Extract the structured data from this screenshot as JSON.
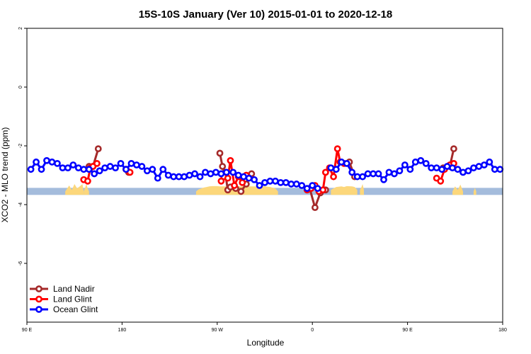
{
  "chart_data": {
    "type": "line",
    "title": "15S-10S January (Ver 10)   2015-01-01 to 2020-12-18",
    "xlabel": "Longitude",
    "ylabel": "XCO2 - MLO trend (ppm)",
    "xlim": [
      -90,
      270
    ],
    "ylim": [
      -8,
      2
    ],
    "x_ticks": [
      {
        "value": -90,
        "label": "90 E"
      },
      {
        "value": -18,
        "label": "180"
      },
      {
        "value": 54,
        "label": "90 W"
      },
      {
        "value": 126,
        "label": "0"
      },
      {
        "value": 198,
        "label": "90 E"
      },
      {
        "value": 270,
        "label": "180"
      }
    ],
    "y_ticks": [
      {
        "value": 2,
        "label": "2"
      },
      {
        "value": 0,
        "label": "0"
      },
      {
        "value": -2,
        "label": "-2"
      },
      {
        "value": -4,
        "label": "-4"
      },
      {
        "value": -6,
        "label": "-6"
      }
    ],
    "legend_position": "bottom-left",
    "band": {
      "y_min": -3.67,
      "y_max": -3.43,
      "color": "#a4bcdc"
    },
    "land_fill_color": "#fcd77b",
    "land_fill_segments": [
      {
        "x": [
          -61,
          -58,
          -56,
          -54,
          -52,
          -50,
          -48,
          -47
        ],
        "y": [
          -3.55,
          -3.35,
          -3.5,
          -3.3,
          -3.45,
          -3.38,
          -3.3,
          -3.55
        ]
      },
      {
        "x": [
          -47,
          -45,
          -44,
          -43
        ],
        "y": [
          -3.55,
          -3.3,
          -3.45,
          -3.55
        ]
      },
      {
        "x": [
          38,
          40,
          42,
          44,
          46,
          48,
          50,
          52,
          54,
          56,
          58,
          60,
          62,
          64,
          66,
          68,
          72,
          75,
          78,
          82,
          86,
          90,
          94,
          98,
          100
        ],
        "y": [
          -3.55,
          -3.48,
          -3.45,
          -3.42,
          -3.4,
          -3.38,
          -3.37,
          -3.37,
          -3.37,
          -3.38,
          -3.38,
          -3.38,
          -3.38,
          -3.38,
          -3.38,
          -3.38,
          -3.38,
          -3.38,
          -3.38,
          -3.38,
          -3.38,
          -3.38,
          -3.4,
          -3.45,
          -3.55
        ]
      },
      {
        "x": [
          140,
          142,
          144,
          148,
          150,
          152,
          156,
          158,
          160
        ],
        "y": [
          -3.5,
          -3.45,
          -3.4,
          -3.38,
          -3.4,
          -3.37,
          -3.38,
          -3.4,
          -3.5
        ]
      },
      {
        "x": [
          162,
          163,
          164,
          165
        ],
        "y": [
          -3.5,
          -3.42,
          -3.3,
          -3.5
        ]
      },
      {
        "x": [
          232,
          234,
          236,
          238,
          240
        ],
        "y": [
          -3.55,
          -3.38,
          -3.5,
          -3.32,
          -3.55
        ]
      },
      {
        "x": [
          248,
          249,
          250
        ],
        "y": [
          -3.55,
          -3.43,
          -3.55
        ]
      }
    ],
    "series": [
      {
        "name": "Land Nadir",
        "color": "#a52a2a",
        "segments": [
          {
            "x": [
              -43,
              -40,
              -36
            ],
            "y": [
              -2.7,
              -2.7,
              -2.1
            ]
          },
          {
            "x": [
              -15,
              -13
            ],
            "y": [
              -2.8,
              -2.9
            ]
          },
          {
            "x": [
              56,
              58,
              60,
              62,
              64
            ],
            "y": [
              -2.25,
              -2.7,
              -2.9,
              -3.5,
              -3.4
            ]
          },
          {
            "x": [
              68,
              72,
              76,
              80
            ],
            "y": [
              -3.45,
              -3.55,
              -3.3,
              -2.95
            ]
          },
          {
            "x": [
              124,
              128,
              132,
              136
            ],
            "y": [
              -3.45,
              -4.1,
              -3.6,
              -3.5
            ]
          },
          {
            "x": [
              154,
              158
            ],
            "y": [
              -2.55,
              -3.05
            ]
          },
          {
            "x": [
              225,
              230,
              233
            ],
            "y": [
              -2.75,
              -2.7,
              -2.1
            ]
          }
        ]
      },
      {
        "name": "Land Glint",
        "color": "#ff0000",
        "segments": [
          {
            "x": [
              -47,
              -44,
              -42,
              -40,
              -37
            ],
            "y": [
              -3.15,
              -3.2,
              -2.75,
              -2.7,
              -2.6
            ]
          },
          {
            "x": [
              -15,
              -12
            ],
            "y": [
              -2.8,
              -2.9
            ]
          },
          {
            "x": [
              57,
              59,
              62,
              64,
              67,
              70,
              73,
              76
            ],
            "y": [
              -3.2,
              -3.05,
              -3.1,
              -2.5,
              -3.35,
              -3.05,
              -3.25,
              -3.0
            ]
          },
          {
            "x": [
              122,
              125,
              128,
              131,
              134,
              136,
              139,
              142,
              145,
              147,
              150
            ],
            "y": [
              -3.5,
              -3.45,
              -3.35,
              -3.55,
              -3.5,
              -2.9,
              -2.75,
              -3.05,
              -2.1,
              -2.55,
              -2.6
            ]
          },
          {
            "x": [
              220,
              223,
              226,
              230,
              233
            ],
            "y": [
              -3.1,
              -3.2,
              -2.8,
              -2.65,
              -2.6
            ]
          }
        ]
      },
      {
        "name": "Ocean Glint",
        "color": "#0000ff",
        "segments": [
          {
            "x": [
              -87,
              -83,
              -79,
              -75,
              -71,
              -67,
              -63,
              -59,
              -55,
              -51,
              -47,
              -43,
              -39,
              -35,
              -31,
              -27,
              -23,
              -19,
              -15,
              -11,
              -7,
              -3,
              1,
              5,
              9,
              13,
              17,
              21,
              25,
              29,
              33,
              37,
              41,
              45,
              49,
              53,
              57,
              61
            ],
            "y": [
              -2.8,
              -2.55,
              -2.8,
              -2.5,
              -2.55,
              -2.6,
              -2.75,
              -2.75,
              -2.65,
              -2.75,
              -2.8,
              -2.8,
              -2.95,
              -2.85,
              -2.75,
              -2.7,
              -2.75,
              -2.6,
              -2.8,
              -2.6,
              -2.65,
              -2.7,
              -2.85,
              -2.8,
              -3.1,
              -2.8,
              -3.0,
              -3.05,
              -3.05,
              -3.05,
              -3.0,
              -2.95,
              -3.05,
              -2.9,
              -2.95,
              -2.9,
              -2.95,
              -2.9
            ]
          },
          {
            "x": [
              66,
              70,
              74,
              78,
              82,
              86,
              90,
              94,
              98,
              102,
              106,
              110,
              114,
              118,
              122,
              126,
              130
            ],
            "y": [
              -2.9,
              -3.0,
              -3.05,
              -3.1,
              -3.15,
              -3.35,
              -3.25,
              -3.2,
              -3.2,
              -3.25,
              -3.25,
              -3.3,
              -3.3,
              -3.35,
              -3.45,
              -3.35,
              -3.45
            ]
          },
          {
            "x": [
              140,
              144,
              148,
              152,
              156,
              160,
              164,
              168,
              172,
              176,
              180,
              184,
              188,
              192,
              196,
              200,
              204,
              208,
              212,
              216,
              220,
              224,
              228,
              232,
              236,
              240,
              244,
              248,
              252,
              256,
              260,
              264,
              268
            ],
            "y": [
              -2.75,
              -2.8,
              -2.55,
              -2.6,
              -2.9,
              -3.05,
              -3.05,
              -2.95,
              -2.95,
              -2.95,
              -3.15,
              -2.9,
              -2.95,
              -2.85,
              -2.65,
              -2.8,
              -2.55,
              -2.5,
              -2.6,
              -2.75,
              -2.75,
              -2.8,
              -2.7,
              -2.75,
              -2.8,
              -2.9,
              -2.85,
              -2.75,
              -2.7,
              -2.65,
              -2.55,
              -2.8,
              -2.8
            ]
          }
        ]
      }
    ]
  }
}
